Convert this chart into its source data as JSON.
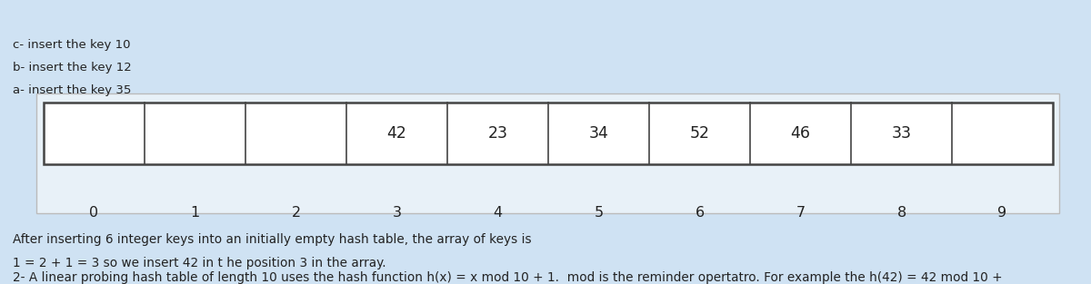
{
  "background_color": "#cfe2f3",
  "title_text1": "2- A linear probing hash table of length 10 uses the hash function h(x) = x mod 10 + 1.  mod is the reminder opertatro. For example the h(42) = 42 mod 10 +",
  "title_text2": "1 = 2 + 1 = 3 so we insert 42 in t he position 3 in the array.",
  "subtitle_text": "After inserting 6 integer keys into an initially empty hash table, the array of keys is",
  "indices": [
    0,
    1,
    2,
    3,
    4,
    5,
    6,
    7,
    8,
    9
  ],
  "values": [
    "",
    "",
    "",
    "42",
    "23",
    "34",
    "52",
    "46",
    "33",
    ""
  ],
  "footer_lines": [
    "a- insert the key 35",
    "b- insert the key 12",
    "c- insert the key 10"
  ],
  "cell_fill": "#ffffff",
  "cell_edge": "#444444",
  "text_color": "#222222",
  "title_fontsize": 9.8,
  "subtitle_fontsize": 9.8,
  "index_fontsize": 11.5,
  "value_fontsize": 12.5,
  "footer_fontsize": 9.5,
  "table_rect_fill": "#f0f5fa",
  "table_rect_edge": "#bbbbbb"
}
